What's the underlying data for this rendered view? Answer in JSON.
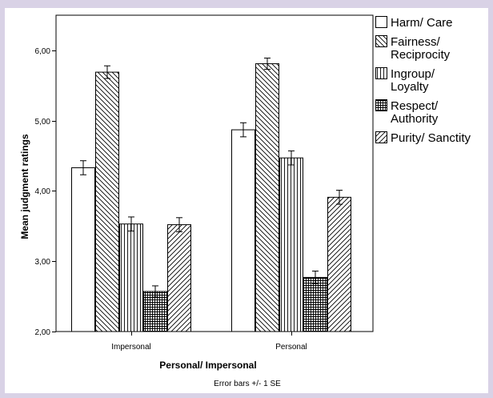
{
  "chart_data": {
    "type": "bar",
    "xlabel": "Personal/ Impersonal",
    "ylabel": "Mean judgment ratings",
    "ylim": [
      2.0,
      6.5
    ],
    "yticks": [
      "2,00",
      "3,00",
      "4,00",
      "5,00",
      "6,00"
    ],
    "ytick_values": [
      2,
      3,
      4,
      5,
      6
    ],
    "categories": [
      "Impersonal",
      "Personal"
    ],
    "footnote": "Error bars +/- 1 SE",
    "legend_placement": "top-right",
    "series": [
      {
        "name": "Harm/ Care",
        "name_lines": [
          "Harm/ Care"
        ],
        "pattern": "none",
        "values": [
          4.33,
          4.87
        ],
        "errors": [
          0.1,
          0.1
        ]
      },
      {
        "name": "Fairness/ Reciprocity",
        "name_lines": [
          "Fairness/",
          "Reciprocity"
        ],
        "pattern": "diag-back",
        "values": [
          5.69,
          5.81
        ],
        "errors": [
          0.09,
          0.08
        ]
      },
      {
        "name": "Ingroup/ Loyalty",
        "name_lines": [
          "Ingroup/",
          "Loyalty"
        ],
        "pattern": "vertical",
        "values": [
          3.53,
          4.47
        ],
        "errors": [
          0.1,
          0.1
        ]
      },
      {
        "name": "Respect/ Authority",
        "name_lines": [
          "Respect/",
          "Authority"
        ],
        "pattern": "grid",
        "values": [
          2.57,
          2.77
        ],
        "errors": [
          0.08,
          0.09
        ]
      },
      {
        "name": "Purity/ Sanctity",
        "name_lines": [
          "Purity/ Sanctity"
        ],
        "pattern": "diag-fwd",
        "values": [
          3.52,
          3.91
        ],
        "errors": [
          0.1,
          0.1
        ]
      }
    ]
  }
}
